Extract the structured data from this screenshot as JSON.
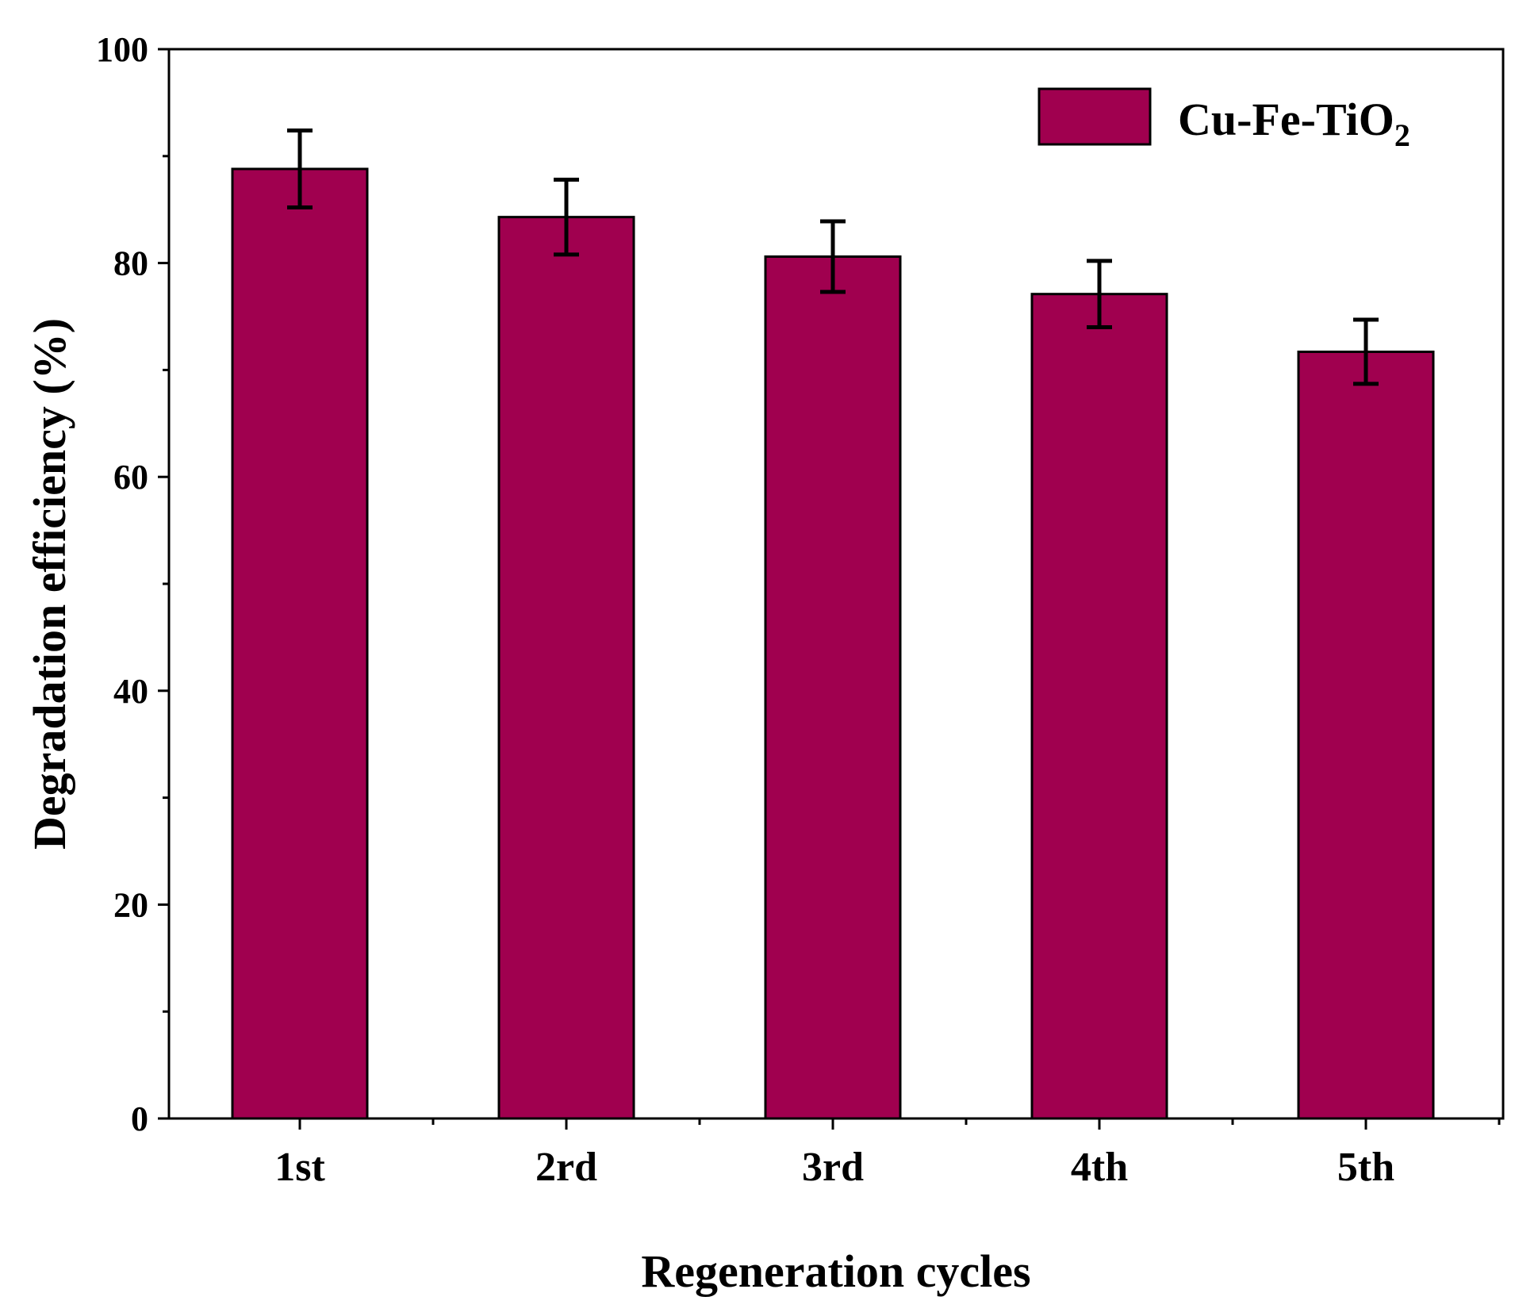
{
  "chart_data": {
    "type": "bar",
    "categories": [
      "1st",
      "2rd",
      "3rd",
      "4th",
      "5th"
    ],
    "series": [
      {
        "name": "Cu-Fe-TiO2",
        "values": [
          88.8,
          84.3,
          80.6,
          77.1,
          71.7
        ],
        "errors": [
          3.6,
          3.5,
          3.3,
          3.1,
          3.0
        ]
      }
    ],
    "xlabel": "Regeneration cycles",
    "ylabel": "Degradation efficiency (%)",
    "ylim": [
      0,
      100
    ],
    "yticks": [
      "0",
      "20",
      "40",
      "60",
      "80",
      "100"
    ],
    "legend": {
      "label_main": "Cu-Fe-TiO",
      "label_sub": "2",
      "placement": "top-right"
    },
    "grid": false,
    "colors": {
      "bar": "#A0004F",
      "stroke": "#000000"
    }
  }
}
